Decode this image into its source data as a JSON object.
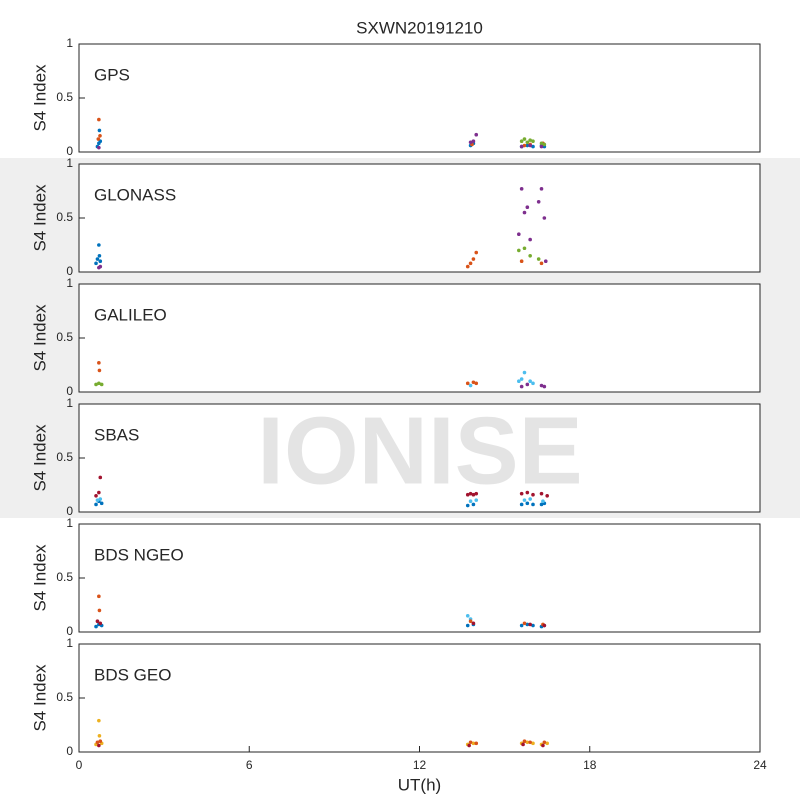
{
  "watermark": "IONISE",
  "chart_data": [
    {
      "type": "scatter",
      "title": "SXWN20191210",
      "label": "GPS",
      "ylabel": "S4 Index",
      "xlim": [
        0,
        24
      ],
      "ylim": [
        0,
        1
      ],
      "yticks": [
        0,
        0.5,
        1
      ],
      "series": [
        {
          "color": "#0072bd",
          "x": [
            0.65,
            0.7,
            0.72,
            0.75,
            13.8,
            13.9,
            15.6,
            15.8,
            16.0,
            16.3,
            16.4
          ],
          "values": [
            0.05,
            0.08,
            0.2,
            0.1,
            0.06,
            0.08,
            0.05,
            0.06,
            0.05,
            0.06,
            0.05
          ]
        },
        {
          "color": "#d95319",
          "x": [
            0.68,
            0.7,
            0.74,
            13.85,
            15.7,
            15.9,
            16.35
          ],
          "values": [
            0.12,
            0.3,
            0.15,
            0.07,
            0.06,
            0.07,
            0.08
          ]
        },
        {
          "color": "#77ac30",
          "x": [
            15.6,
            15.7,
            15.8,
            15.9,
            16.0,
            16.3,
            16.4
          ],
          "values": [
            0.1,
            0.12,
            0.09,
            0.11,
            0.1,
            0.08,
            0.07
          ]
        },
        {
          "color": "#7e2f8e",
          "x": [
            0.7,
            13.8,
            13.9,
            14.0,
            15.6,
            15.9,
            16.3
          ],
          "values": [
            0.04,
            0.09,
            0.1,
            0.16,
            0.05,
            0.06,
            0.05
          ]
        }
      ]
    },
    {
      "type": "scatter",
      "label": "GLONASS",
      "ylabel": "S4 Index",
      "xlim": [
        0,
        24
      ],
      "ylim": [
        0,
        1
      ],
      "yticks": [
        0,
        0.5,
        1
      ],
      "series": [
        {
          "color": "#0072bd",
          "x": [
            0.6,
            0.65,
            0.7,
            0.72,
            0.75
          ],
          "values": [
            0.08,
            0.12,
            0.25,
            0.15,
            0.1
          ]
        },
        {
          "color": "#d95319",
          "x": [
            13.7,
            13.8,
            13.9,
            14.0,
            15.6,
            16.3
          ],
          "values": [
            0.05,
            0.08,
            0.12,
            0.18,
            0.1,
            0.08
          ]
        },
        {
          "color": "#77ac30",
          "x": [
            15.5,
            15.7,
            15.9,
            16.2
          ],
          "values": [
            0.2,
            0.22,
            0.15,
            0.12
          ]
        },
        {
          "color": "#7e2f8e",
          "x": [
            0.7,
            0.75,
            15.5,
            15.6,
            15.7,
            15.8,
            15.9,
            16.2,
            16.3,
            16.4,
            16.45
          ],
          "values": [
            0.04,
            0.05,
            0.35,
            0.77,
            0.55,
            0.6,
            0.3,
            0.65,
            0.77,
            0.5,
            0.1
          ]
        }
      ]
    },
    {
      "type": "scatter",
      "label": "GALILEO",
      "ylabel": "S4 Index",
      "xlim": [
        0,
        24
      ],
      "ylim": [
        0,
        1
      ],
      "yticks": [
        0,
        0.5,
        1
      ],
      "series": [
        {
          "color": "#77ac30",
          "x": [
            0.6,
            0.7,
            0.8
          ],
          "values": [
            0.07,
            0.08,
            0.07
          ]
        },
        {
          "color": "#d95319",
          "x": [
            0.7,
            0.72,
            13.7,
            13.9,
            14.0
          ],
          "values": [
            0.27,
            0.2,
            0.08,
            0.09,
            0.08
          ]
        },
        {
          "color": "#4dbeee",
          "x": [
            13.8,
            15.5,
            15.6,
            15.7,
            15.9,
            16.0
          ],
          "values": [
            0.06,
            0.1,
            0.12,
            0.18,
            0.1,
            0.08
          ]
        },
        {
          "color": "#7e2f8e",
          "x": [
            15.6,
            15.8,
            16.3,
            16.4
          ],
          "values": [
            0.05,
            0.07,
            0.06,
            0.05
          ]
        }
      ]
    },
    {
      "type": "scatter",
      "label": "SBAS",
      "ylabel": "S4 Index",
      "xlim": [
        0,
        24
      ],
      "ylim": [
        0,
        1
      ],
      "yticks": [
        0,
        0.5,
        1
      ],
      "series": [
        {
          "color": "#0072bd",
          "x": [
            0.6,
            0.7,
            0.8,
            13.7,
            13.9,
            15.6,
            15.8,
            16.0,
            16.3,
            16.4
          ],
          "values": [
            0.07,
            0.1,
            0.08,
            0.06,
            0.07,
            0.07,
            0.08,
            0.07,
            0.07,
            0.08
          ]
        },
        {
          "color": "#4dbeee",
          "x": [
            0.65,
            0.75,
            13.8,
            14.0,
            15.7,
            15.9,
            16.35
          ],
          "values": [
            0.11,
            0.12,
            0.1,
            0.11,
            0.11,
            0.12,
            0.1
          ]
        },
        {
          "color": "#a2142f",
          "x": [
            0.6,
            0.7,
            0.75,
            13.7,
            13.8,
            13.9,
            14.0,
            15.6,
            15.8,
            16.0,
            16.3,
            16.5
          ],
          "values": [
            0.15,
            0.18,
            0.32,
            0.16,
            0.17,
            0.16,
            0.17,
            0.17,
            0.18,
            0.16,
            0.17,
            0.15
          ]
        }
      ]
    },
    {
      "type": "scatter",
      "label": "BDS NGEO",
      "ylabel": "S4 Index",
      "xlim": [
        0,
        24
      ],
      "ylim": [
        0,
        1
      ],
      "yticks": [
        0,
        0.5,
        1
      ],
      "series": [
        {
          "color": "#0072bd",
          "x": [
            0.6,
            0.7,
            0.8,
            13.7,
            13.9,
            15.6,
            15.8,
            16.0,
            16.3,
            16.4
          ],
          "values": [
            0.05,
            0.07,
            0.06,
            0.06,
            0.07,
            0.06,
            0.07,
            0.06,
            0.05,
            0.06
          ]
        },
        {
          "color": "#4dbeee",
          "x": [
            13.7,
            13.8
          ],
          "values": [
            0.15,
            0.12
          ]
        },
        {
          "color": "#d95319",
          "x": [
            0.7,
            0.72,
            13.8,
            15.7,
            16.35
          ],
          "values": [
            0.33,
            0.2,
            0.1,
            0.08,
            0.07
          ]
        },
        {
          "color": "#a2142f",
          "x": [
            0.65,
            0.75,
            13.9,
            15.9,
            16.4
          ],
          "values": [
            0.1,
            0.08,
            0.08,
            0.07,
            0.06
          ]
        }
      ]
    },
    {
      "type": "scatter",
      "label": "BDS GEO",
      "ylabel": "S4 Index",
      "xlabel": "UT(h)",
      "xlim": [
        0,
        24
      ],
      "ylim": [
        0,
        1
      ],
      "xticks": [
        0,
        6,
        12,
        18,
        24
      ],
      "yticks": [
        0,
        0.5,
        1
      ],
      "series": [
        {
          "color": "#edb120",
          "x": [
            0.6,
            0.7,
            0.72,
            0.8,
            13.7,
            13.9,
            15.6,
            15.8,
            16.0,
            16.3,
            16.5
          ],
          "values": [
            0.07,
            0.29,
            0.15,
            0.08,
            0.07,
            0.08,
            0.08,
            0.09,
            0.08,
            0.07,
            0.08
          ]
        },
        {
          "color": "#d95319",
          "x": [
            0.65,
            0.75,
            13.8,
            14.0,
            15.7,
            15.9,
            16.4
          ],
          "values": [
            0.09,
            0.1,
            0.09,
            0.08,
            0.1,
            0.09,
            0.09
          ]
        },
        {
          "color": "#a2142f",
          "x": [
            0.7,
            13.75,
            15.65,
            16.35
          ],
          "values": [
            0.06,
            0.06,
            0.07,
            0.06
          ]
        }
      ]
    }
  ]
}
